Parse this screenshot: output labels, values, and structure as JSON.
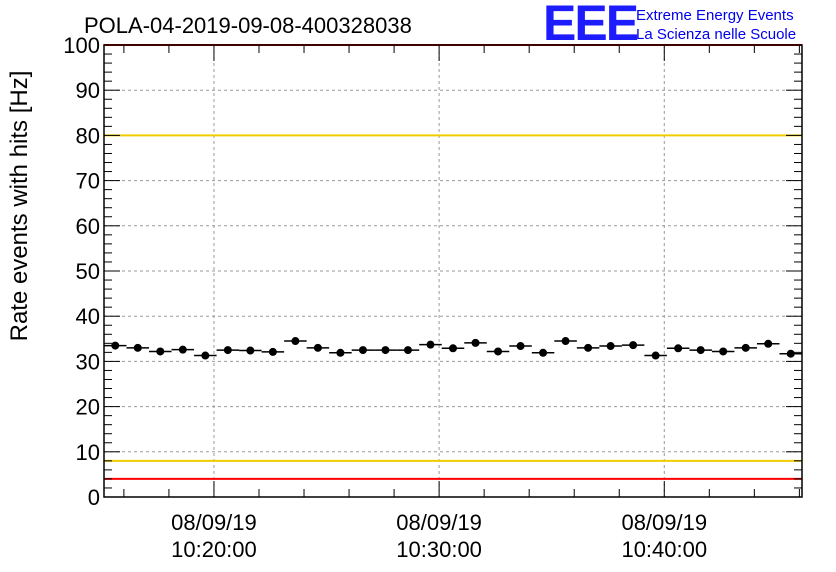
{
  "header": {
    "title": "POLA-04-2019-09-08-400328038",
    "logo": {
      "mark": "EEE",
      "line1": "Extreme Energy Events",
      "line2": "La Scienza nelle Scuole"
    }
  },
  "colors": {
    "red_line": "#ff0000",
    "yellow_line": "#f2cc00",
    "marker": "#000000",
    "grid": "#9a9a9a"
  },
  "chart_data": {
    "type": "scatter",
    "title": "POLA-04-2019-09-08-400328038",
    "ylabel": "Rate events with hits [Hz]",
    "xlabel": "",
    "ylim": [
      0,
      100
    ],
    "y_ticks": [
      0,
      10,
      20,
      30,
      40,
      50,
      60,
      70,
      80,
      90,
      100
    ],
    "x_range": [
      "10:15:07",
      "10:46:07"
    ],
    "x_ticks": [
      {
        "t": "10:20:00",
        "date": "08/09/19",
        "time": "10:20:00"
      },
      {
        "t": "10:30:00",
        "date": "08/09/19",
        "time": "10:30:00"
      },
      {
        "t": "10:40:00",
        "date": "08/09/19",
        "time": "10:40:00"
      }
    ],
    "grid": true,
    "reference_lines": [
      {
        "y": 100,
        "color": "red"
      },
      {
        "y": 80,
        "color": "yellow"
      },
      {
        "y": 8,
        "color": "yellow"
      },
      {
        "y": 4,
        "color": "red"
      }
    ],
    "series": [
      {
        "x": [
          "10:15:37",
          "10:16:37",
          "10:17:37",
          "10:18:37",
          "10:19:37",
          "10:20:37",
          "10:21:37",
          "10:22:37",
          "10:23:37",
          "10:24:37",
          "10:25:37",
          "10:26:37",
          "10:27:37",
          "10:28:37",
          "10:29:37",
          "10:30:37",
          "10:31:37",
          "10:32:37",
          "10:33:37",
          "10:34:37",
          "10:35:37",
          "10:36:37",
          "10:37:37",
          "10:38:37",
          "10:39:37",
          "10:40:37",
          "10:41:37",
          "10:42:37",
          "10:43:37",
          "10:44:37",
          "10:45:37"
        ],
        "values": [
          33.5,
          33.0,
          32.2,
          32.6,
          31.3,
          32.5,
          32.4,
          32.1,
          34.5,
          33.0,
          31.9,
          32.5,
          32.5,
          32.5,
          33.7,
          32.9,
          34.1,
          32.2,
          33.4,
          31.9,
          34.5,
          33.0,
          33.4,
          33.6,
          31.3,
          32.9,
          32.5,
          32.2,
          33.0,
          33.9,
          31.7
        ]
      }
    ]
  }
}
